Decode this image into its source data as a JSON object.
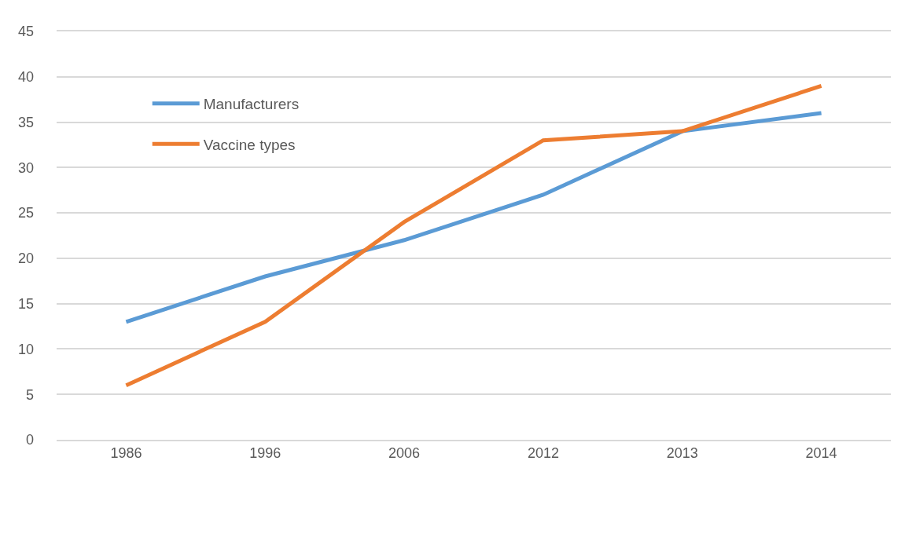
{
  "chart_data": {
    "type": "line",
    "categories": [
      "1986",
      "1996",
      "2006",
      "2012",
      "2013",
      "2014"
    ],
    "series": [
      {
        "name": "Manufacturers",
        "color": "#5b9bd5",
        "values": [
          13,
          18,
          22,
          27,
          34,
          36
        ]
      },
      {
        "name": "Vaccine types",
        "color": "#ed7d31",
        "values": [
          6,
          13,
          24,
          33,
          34,
          39
        ]
      }
    ],
    "ylim": [
      0,
      45
    ],
    "yticks": [
      0,
      5,
      10,
      15,
      20,
      25,
      30,
      35,
      40,
      45
    ],
    "grid": "y",
    "legend": "top left",
    "line_style": "solid"
  }
}
